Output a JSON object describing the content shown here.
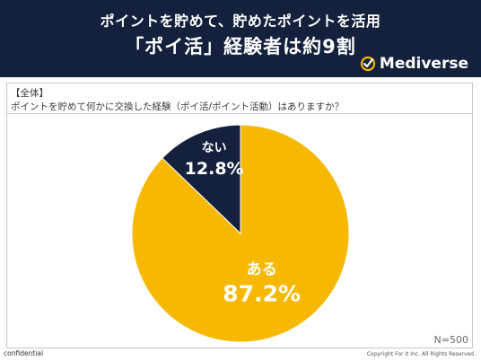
{
  "header": {
    "title_line1": "ポイントを貯めて、貯めたポイントを活用",
    "title_line2": "「ポイ活」経験者は約9割",
    "logo_text": "Mediverse",
    "bg_color": "#14213d"
  },
  "panel": {
    "scope_label": "【全体】",
    "question": "ポイントを貯めて何かに交換した経験（ポイ活/ポイント活動）はありますか？",
    "sample_size": "N=500"
  },
  "chart_data": {
    "type": "pie",
    "slices": [
      {
        "label": "ある",
        "display": "87.2%",
        "value": 87.2,
        "color": "#f6b800"
      },
      {
        "label": "ない",
        "display": "12.8%",
        "value": 12.8,
        "color": "#14213d"
      }
    ]
  },
  "footer": {
    "confidential": "confidential",
    "copyright": "Copyright For it Inc. All Rights Reserved."
  }
}
